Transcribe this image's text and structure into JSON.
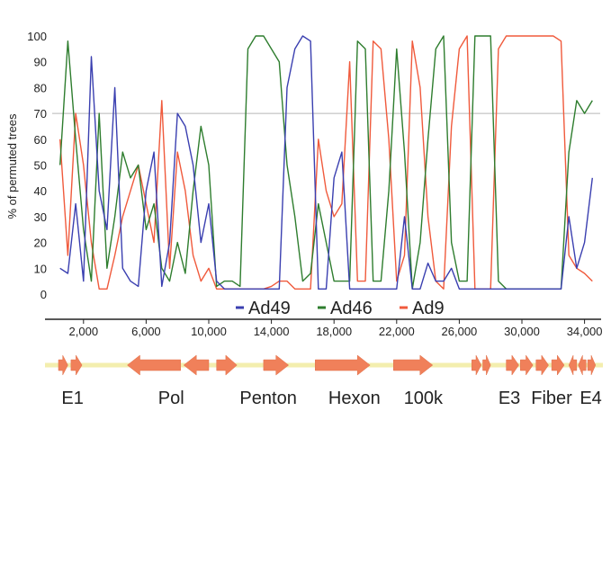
{
  "chart_data": {
    "type": "line",
    "ylabel": "% of permuted trees",
    "ylim": [
      0,
      100
    ],
    "yticks": [
      0,
      10,
      20,
      30,
      40,
      50,
      60,
      70,
      80,
      90,
      100
    ],
    "xlim": [
      0,
      35000
    ],
    "xticks": [
      2000,
      6000,
      10000,
      14000,
      18000,
      22000,
      26000,
      30000,
      34000
    ],
    "xtick_labels": [
      "2,000",
      "6,000",
      "10,000",
      "14,000",
      "18,000",
      "22,000",
      "26,000",
      "30,000",
      "34,000"
    ],
    "threshold": 70,
    "legend_position": "top-center",
    "x": [
      500,
      1000,
      1500,
      2000,
      2500,
      3000,
      3500,
      4000,
      4500,
      5000,
      5500,
      6000,
      6500,
      7000,
      7500,
      8000,
      8500,
      9000,
      9500,
      10000,
      10500,
      11000,
      11500,
      12000,
      12500,
      13000,
      13500,
      14000,
      14500,
      15000,
      15500,
      16000,
      16500,
      17000,
      17500,
      18000,
      18500,
      19000,
      19500,
      20000,
      20500,
      21000,
      21500,
      22000,
      22500,
      23000,
      23500,
      24000,
      24500,
      25000,
      25500,
      26000,
      26500,
      27000,
      27500,
      28000,
      28500,
      29000,
      29500,
      30000,
      30500,
      31000,
      31500,
      32000,
      32500,
      33000,
      33500,
      34000,
      34500
    ],
    "series": [
      {
        "name": "Ad49",
        "color": "#3a3fb0",
        "values": [
          10,
          8,
          35,
          5,
          92,
          40,
          25,
          80,
          10,
          5,
          3,
          40,
          55,
          3,
          20,
          70,
          65,
          50,
          20,
          35,
          5,
          2,
          2,
          2,
          2,
          2,
          2,
          2,
          2,
          80,
          95,
          100,
          98,
          2,
          2,
          45,
          55,
          2,
          2,
          2,
          2,
          2,
          2,
          2,
          30,
          2,
          2,
          12,
          5,
          5,
          10,
          2,
          2,
          2,
          2,
          2,
          2,
          2,
          2,
          2,
          2,
          2,
          2,
          2,
          2,
          30,
          10,
          20,
          45
        ]
      },
      {
        "name": "Ad46",
        "color": "#2e7d2e",
        "values": [
          50,
          98,
          60,
          25,
          5,
          70,
          10,
          30,
          55,
          45,
          50,
          25,
          35,
          10,
          5,
          20,
          8,
          40,
          65,
          50,
          3,
          5,
          5,
          3,
          95,
          100,
          100,
          95,
          90,
          50,
          30,
          5,
          8,
          35,
          20,
          5,
          5,
          5,
          98,
          95,
          5,
          5,
          40,
          95,
          55,
          2,
          20,
          60,
          95,
          100,
          20,
          5,
          5,
          100,
          100,
          100,
          5,
          2,
          2,
          2,
          2,
          2,
          2,
          2,
          2,
          55,
          75,
          70,
          75
        ]
      },
      {
        "name": "Ad9",
        "color": "#f05a3c",
        "values": [
          60,
          15,
          70,
          50,
          20,
          2,
          2,
          15,
          30,
          40,
          50,
          35,
          20,
          75,
          10,
          55,
          40,
          15,
          5,
          10,
          2,
          2,
          2,
          2,
          2,
          2,
          2,
          3,
          5,
          5,
          2,
          2,
          2,
          60,
          40,
          30,
          35,
          90,
          5,
          5,
          98,
          95,
          60,
          5,
          15,
          98,
          80,
          30,
          5,
          2,
          65,
          95,
          100,
          2,
          2,
          2,
          95,
          100,
          100,
          100,
          100,
          100,
          100,
          100,
          98,
          15,
          10,
          8,
          5
        ]
      }
    ],
    "gene_map": {
      "genes": [
        {
          "start": 400,
          "end": 1000,
          "dir": "right"
        },
        {
          "start": 1200,
          "end": 1900,
          "dir": "right"
        },
        {
          "start": 4800,
          "end": 8200,
          "dir": "left"
        },
        {
          "start": 8400,
          "end": 10000,
          "dir": "left"
        },
        {
          "start": 10500,
          "end": 11800,
          "dir": "right"
        },
        {
          "start": 13500,
          "end": 15100,
          "dir": "right"
        },
        {
          "start": 16800,
          "end": 20300,
          "dir": "right"
        },
        {
          "start": 21800,
          "end": 24300,
          "dir": "right"
        },
        {
          "start": 26800,
          "end": 27400,
          "dir": "right"
        },
        {
          "start": 27500,
          "end": 28000,
          "dir": "right"
        },
        {
          "start": 29000,
          "end": 29800,
          "dir": "right"
        },
        {
          "start": 29900,
          "end": 30700,
          "dir": "right"
        },
        {
          "start": 30900,
          "end": 31700,
          "dir": "right"
        },
        {
          "start": 31900,
          "end": 32700,
          "dir": "right"
        },
        {
          "start": 33000,
          "end": 33500,
          "dir": "left"
        },
        {
          "start": 33600,
          "end": 34100,
          "dir": "left"
        },
        {
          "start": 34200,
          "end": 34700,
          "dir": "right"
        }
      ],
      "labels": [
        {
          "text": "E1",
          "x": 1300
        },
        {
          "text": "Pol",
          "x": 7600
        },
        {
          "text": "Penton",
          "x": 13800
        },
        {
          "text": "Hexon",
          "x": 19300
        },
        {
          "text": "100k",
          "x": 23700
        },
        {
          "text": "E3",
          "x": 29200
        },
        {
          "text": "Fiber",
          "x": 31900
        },
        {
          "text": "E4",
          "x": 34400
        }
      ]
    }
  }
}
